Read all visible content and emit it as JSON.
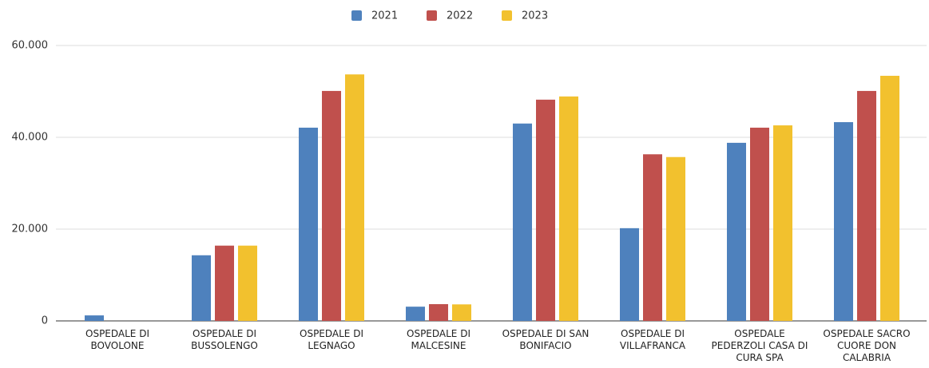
{
  "chart_data": {
    "type": "bar",
    "categories": [
      "OSPEDALE DI BOVOLONE",
      "OSPEDALE DI BUSSOLENGO",
      "OSPEDALE DI LEGNAGO",
      "OSPEDALE DI MALCESINE",
      "OSPEDALE DI SAN BONIFACIO",
      "OSPEDALE DI VILLAFRANCA",
      "OSPEDALE PEDERZOLI CASA DI CURA SPA",
      "OSPEDALE SACRO CUORE DON CALABRIA"
    ],
    "series": [
      {
        "name": "2021",
        "color": "#4e81bd",
        "values": [
          1200,
          14300,
          42100,
          3100,
          43000,
          20200,
          38800,
          43300
        ]
      },
      {
        "name": "2022",
        "color": "#c0504d",
        "values": [
          0,
          16400,
          50100,
          3650,
          48200,
          36300,
          42100,
          50100
        ]
      },
      {
        "name": "2023",
        "color": "#f2c12e",
        "values": [
          0,
          16400,
          53700,
          3600,
          48900,
          35700,
          42600,
          53400
        ]
      }
    ],
    "ylim": [
      0,
      60000
    ],
    "yticks": [
      0,
      {
        "value": 20000,
        "label": "20.000"
      },
      {
        "value": 40000,
        "label": "40.000"
      },
      {
        "value": 60000,
        "label": "60.000"
      }
    ],
    "grid": true,
    "legend": "top"
  }
}
